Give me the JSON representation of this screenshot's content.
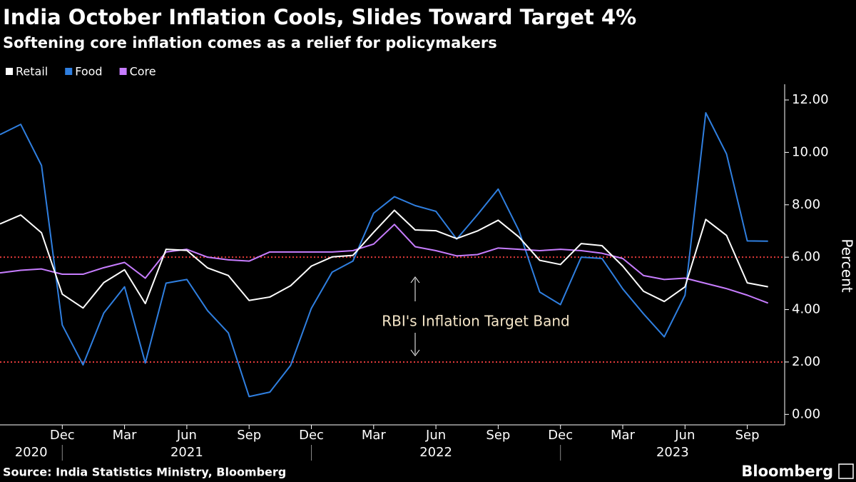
{
  "chart_data": {
    "type": "line",
    "title": "India October Inflation Cools, Slides Toward Target 4%",
    "subtitle": "Softening core inflation comes as a relief for policymakers",
    "y_label": "Percent",
    "annotation": "RBI's Inflation Target Band",
    "target_band": [
      2,
      6
    ],
    "source": "Source: India Statistics Ministry, Bloomberg",
    "brand": "Bloomberg",
    "x": [
      "2020-09",
      "2020-10",
      "2020-11",
      "2020-12",
      "2021-01",
      "2021-02",
      "2021-03",
      "2021-04",
      "2021-05",
      "2021-06",
      "2021-07",
      "2021-08",
      "2021-09",
      "2021-10",
      "2021-11",
      "2021-12",
      "2022-01",
      "2022-02",
      "2022-03",
      "2022-04",
      "2022-05",
      "2022-06",
      "2022-07",
      "2022-08",
      "2022-09",
      "2022-10",
      "2022-11",
      "2022-12",
      "2023-01",
      "2023-02",
      "2023-03",
      "2023-04",
      "2023-05",
      "2023-06",
      "2023-07",
      "2023-08",
      "2023-09",
      "2023-10"
    ],
    "series": [
      {
        "name": "Retail",
        "color": "#ffffff",
        "values": [
          7.27,
          7.61,
          6.93,
          4.59,
          4.06,
          5.03,
          5.52,
          4.23,
          6.3,
          6.26,
          5.59,
          5.3,
          4.35,
          4.48,
          4.91,
          5.66,
          6.01,
          6.07,
          6.95,
          7.79,
          7.04,
          7.01,
          6.71,
          7.0,
          7.41,
          6.77,
          5.88,
          5.72,
          6.52,
          6.44,
          5.66,
          4.7,
          4.31,
          4.87,
          7.44,
          6.83,
          5.02,
          4.87
        ]
      },
      {
        "name": "Food",
        "color": "#2f7fe0",
        "values": [
          10.68,
          11.07,
          9.5,
          3.41,
          1.89,
          3.87,
          4.87,
          1.96,
          5.01,
          5.15,
          3.96,
          3.11,
          0.68,
          0.85,
          1.87,
          4.05,
          5.43,
          5.85,
          7.68,
          8.31,
          7.97,
          7.75,
          6.69,
          7.62,
          8.6,
          7.01,
          4.67,
          4.19,
          6.0,
          5.95,
          4.79,
          3.84,
          2.96,
          4.55,
          11.51,
          9.94,
          6.62,
          6.61
        ]
      },
      {
        "name": "Core",
        "color": "#c77dff",
        "values": [
          5.4,
          5.5,
          5.55,
          5.35,
          5.35,
          5.6,
          5.8,
          5.2,
          6.2,
          6.3,
          6.0,
          5.9,
          5.85,
          6.2,
          6.2,
          6.2,
          6.2,
          6.25,
          6.5,
          7.25,
          6.4,
          6.25,
          6.05,
          6.1,
          6.35,
          6.3,
          6.25,
          6.3,
          6.25,
          6.15,
          5.95,
          5.3,
          5.15,
          5.2,
          5.0,
          4.8,
          4.55,
          4.25
        ]
      }
    ],
    "xticks": [
      {
        "value": "2020-12",
        "label": "Dec"
      },
      {
        "value": "2021-03",
        "label": "Mar"
      },
      {
        "value": "2021-06",
        "label": "Jun"
      },
      {
        "value": "2021-09",
        "label": "Sep"
      },
      {
        "value": "2021-12",
        "label": "Dec"
      },
      {
        "value": "2022-03",
        "label": "Mar"
      },
      {
        "value": "2022-06",
        "label": "Jun"
      },
      {
        "value": "2022-09",
        "label": "Sep"
      },
      {
        "value": "2022-12",
        "label": "Dec"
      },
      {
        "value": "2023-03",
        "label": "Mar"
      },
      {
        "value": "2023-06",
        "label": "Jun"
      },
      {
        "value": "2023-09",
        "label": "Sep"
      }
    ],
    "year_labels": [
      "2020",
      "2021",
      "2022",
      "2023"
    ],
    "ylim": [
      -0.4,
      12.6
    ],
    "yticks": [
      {
        "value": 0,
        "label": "0.00"
      },
      {
        "value": 2,
        "label": "2.00"
      },
      {
        "value": 4,
        "label": "4.00"
      },
      {
        "value": 6,
        "label": "6.00"
      },
      {
        "value": 8,
        "label": "8.00"
      },
      {
        "value": 10,
        "label": "10.00"
      },
      {
        "value": 12,
        "label": "12.00"
      }
    ]
  }
}
